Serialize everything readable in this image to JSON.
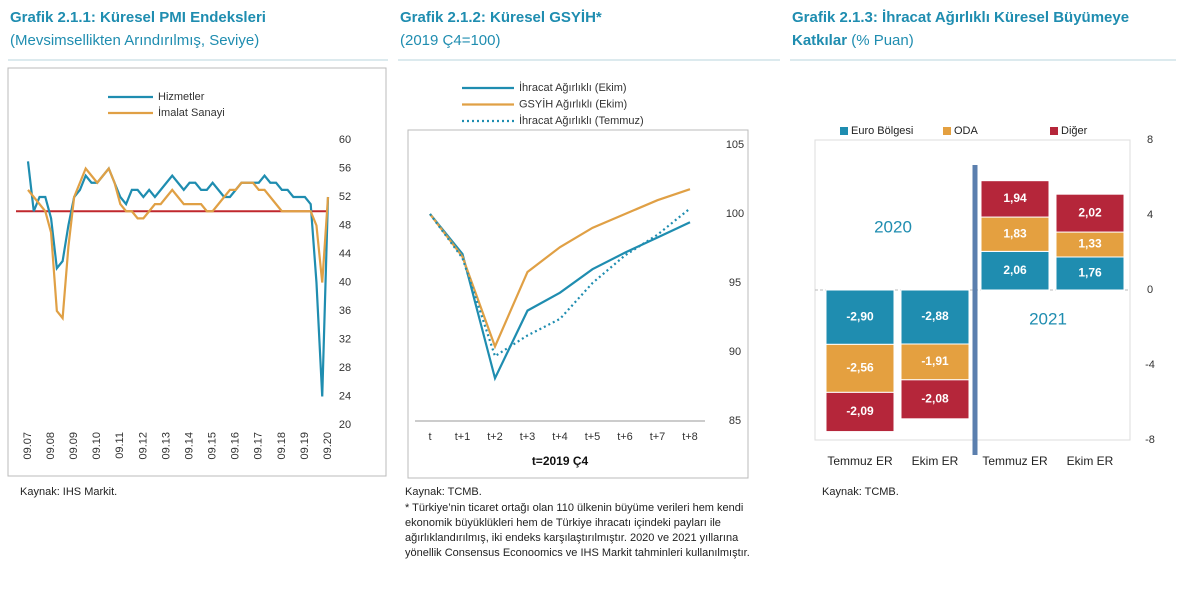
{
  "chart_data": [
    {
      "type": "line",
      "title": "Grafik 2.1.1: Küresel PMI Endeksleri",
      "subtitle": "(Mevsimsellikten Arındırılmış, Seviye)",
      "source": "Kaynak: IHS Markit.",
      "categories": [
        "09.07",
        null,
        null,
        null,
        "09.08",
        null,
        null,
        null,
        "09.09",
        null,
        null,
        null,
        "09.10",
        null,
        null,
        null,
        "09.11",
        null,
        null,
        null,
        "09.12",
        null,
        null,
        null,
        "09.13",
        null,
        null,
        null,
        "09.14",
        null,
        null,
        null,
        "09.15",
        null,
        null,
        null,
        "09.16",
        null,
        null,
        null,
        "09.17",
        null,
        null,
        null,
        "09.18",
        null,
        null,
        null,
        "09.19",
        null,
        null,
        null,
        "09.20"
      ],
      "series": [
        {
          "name": "Hizmetler",
          "color": "#1f8db0",
          "values": [
            57,
            50,
            52,
            52,
            49,
            42,
            43,
            48,
            52,
            53,
            55,
            54,
            54,
            55,
            56,
            54,
            52,
            51,
            53,
            53,
            52,
            53,
            52,
            53,
            54,
            55,
            54,
            53,
            54,
            54,
            53,
            53,
            54,
            53,
            52,
            52,
            53,
            54,
            54,
            54,
            54,
            55,
            54,
            54,
            53,
            53,
            52,
            52,
            52,
            51,
            40,
            24,
            52
          ]
        },
        {
          "name": "İmalat Sanayi",
          "color": "#e0a045",
          "values": [
            53,
            52,
            51,
            50,
            47,
            36,
            35,
            45,
            52,
            54,
            56,
            55,
            54,
            55,
            56,
            54,
            51,
            50,
            50,
            49,
            49,
            50,
            51,
            51,
            52,
            53,
            52,
            51,
            51,
            51,
            51,
            50,
            50,
            51,
            52,
            53,
            53,
            54,
            54,
            54,
            53,
            53,
            52,
            51,
            50,
            50,
            50,
            50,
            50,
            50,
            48,
            40,
            52
          ]
        }
      ],
      "reference_line": 50,
      "reference_color": "#c0282d",
      "ylim": [
        20,
        60
      ],
      "yticks": [
        20,
        24,
        28,
        32,
        36,
        40,
        44,
        48,
        52,
        56,
        60
      ]
    },
    {
      "type": "line",
      "title": "Grafik 2.1.2: Küresel GSYİH*",
      "subtitle": "(2019 Ç4=100)",
      "source": "Kaynak: TCMB.",
      "note": "* Türkiye’nin ticaret ortağı olan 110 ülkenin büyüme verileri hem kendi ekonomik büyüklükleri hem de Türkiye ihracatı içindeki payları ile ağırlıklandırılmış, iki endeks karşılaştırılmıştır. 2020 ve 2021 yıllarına yönellik Consensus Econoomics ve IHS Markit tahminleri kullanılmıştır.",
      "x_label": "t=2019 Ç4",
      "categories": [
        "t",
        "t+1",
        "t+2",
        "t+3",
        "t+4",
        "t+5",
        "t+6",
        "t+7",
        "t+8"
      ],
      "series": [
        {
          "name": "İhracat Ağırlıklı (Ekim)",
          "color": "#1f8db0",
          "values": [
            100,
            97.1,
            88.1,
            93,
            94.3,
            96,
            97.2,
            98.3,
            99.4
          ]
        },
        {
          "name": "GSYİH Ağırlıklı (Ekim)",
          "color": "#e0a045",
          "values": [
            100,
            96.9,
            90.4,
            95.8,
            97.6,
            99,
            100,
            101,
            101.8
          ]
        },
        {
          "name": "İhracat Ağırlıklı (Temmuz)",
          "color": "#1f8db0",
          "dashed": true,
          "values": [
            100,
            96.8,
            89.7,
            91.2,
            92.4,
            95,
            97,
            98.5,
            100.4
          ]
        }
      ],
      "ylim": [
        85,
        105
      ],
      "yticks": [
        85,
        90,
        95,
        100,
        105
      ]
    },
    {
      "type": "stacked_bar",
      "title": "Grafik 2.1.3: İhracat Ağırlıklı Küresel Büyümeye Katkılar",
      "subtitle": "(% Puan)",
      "source": "Kaynak: TCMB.",
      "categories": [
        "Temmuz ER",
        "Ekim ER",
        "Temmuz ER",
        "Ekim ER"
      ],
      "series": [
        {
          "name": "Euro Bölgesi",
          "color": "#1f8db0",
          "values": [
            -2.9,
            -2.88,
            2.06,
            1.76
          ],
          "value_labels": [
            "-2,90",
            "-2,88",
            "2,06",
            "1,76"
          ]
        },
        {
          "name": "ODA",
          "color": "#e4a040",
          "values": [
            -2.56,
            -1.91,
            1.83,
            1.33
          ],
          "value_labels": [
            "-2,56",
            "-1,91",
            "1,83",
            "1,33"
          ]
        },
        {
          "name": "Diğer",
          "color": "#b5263a",
          "values": [
            -2.09,
            -2.08,
            1.94,
            2.02
          ],
          "value_labels": [
            "-2,09",
            "-2,08",
            "1,94",
            "2,02"
          ]
        }
      ],
      "annotations": [
        "2020",
        "2021"
      ],
      "ylim": [
        -8,
        8
      ],
      "yticks": [
        -8,
        -4,
        0,
        4,
        8
      ]
    }
  ]
}
